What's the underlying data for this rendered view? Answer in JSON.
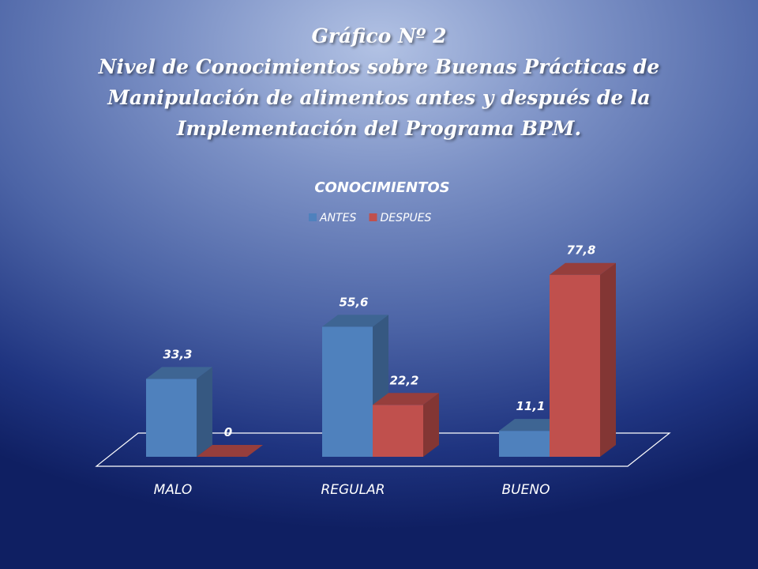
{
  "slide": {
    "title_lines": [
      "Gráfico Nº 2",
      "Nivel de Conocimientos sobre Buenas Prácticas de",
      "Manipulación de alimentos antes y después de la",
      "Implementación del Programa BPM."
    ]
  },
  "chart_data": {
    "type": "bar",
    "title": "CONOCIMIENTOS",
    "categories": [
      "MALO",
      "REGULAR",
      "BUENO"
    ],
    "series": [
      {
        "name": "ANTES",
        "values": [
          33.3,
          55.6,
          11.1
        ],
        "labels": [
          "33,3",
          "55,6",
          "11,1"
        ],
        "color": "#4f81bd"
      },
      {
        "name": "DESPUES",
        "values": [
          0,
          22.2,
          77.8
        ],
        "labels": [
          "0",
          "22,2",
          "77,8"
        ],
        "color": "#c0504d"
      }
    ],
    "style": "3d-clustered-column",
    "legend_position": "top",
    "grid": false,
    "data_labels": true
  }
}
